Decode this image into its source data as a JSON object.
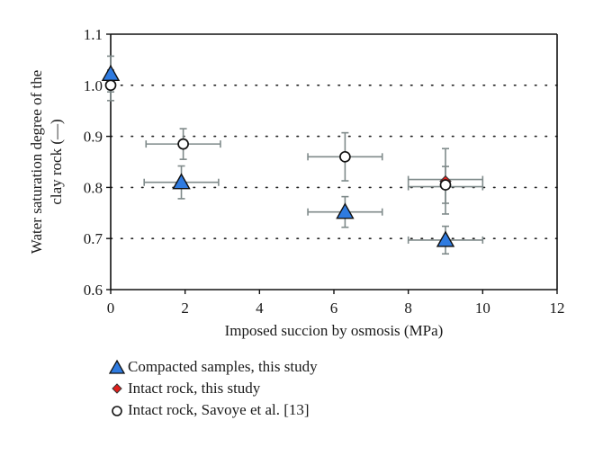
{
  "chart_data": {
    "type": "scatter",
    "title": "",
    "xlabel": "Imposed succion by osmosis (MPa)",
    "ylabel_lines": [
      "Water saturation degree of the",
      "clay rock (—)"
    ],
    "xlim": [
      0,
      12
    ],
    "ylim": [
      0.6,
      1.1
    ],
    "x_ticks": [
      0,
      2,
      4,
      6,
      8,
      10,
      12
    ],
    "y_ticks": [
      0.6,
      0.7,
      0.8,
      0.9,
      1.0,
      1.1
    ],
    "x_tick_labels": [
      "0",
      "2",
      "4",
      "6",
      "8",
      "10",
      "12"
    ],
    "y_tick_labels": [
      "0.6",
      "0.7",
      "0.8",
      "0.9",
      "1.0",
      "1.1"
    ],
    "grid": {
      "horizontal_dotted_at": [
        0.7,
        0.8,
        0.9,
        1.0
      ]
    },
    "legend_placement": "below",
    "series": [
      {
        "name": "Compacted samples, this study",
        "marker": "triangle",
        "color": "#2f7be0",
        "points": [
          {
            "x": 0.0,
            "y": 1.022,
            "xerr": 0,
            "yerr": 0.035
          },
          {
            "x": 1.9,
            "y": 0.81,
            "xerr": 1.0,
            "yerr": 0.032
          },
          {
            "x": 6.3,
            "y": 0.752,
            "xerr": 1.0,
            "yerr": 0.03
          },
          {
            "x": 9.0,
            "y": 0.697,
            "xerr": 1.0,
            "yerr": 0.027
          }
        ]
      },
      {
        "name": "Intact rock, this study",
        "marker": "diamond",
        "color": "#e0201c",
        "points": [
          {
            "x": 9.0,
            "y": 0.812,
            "xerr": 1.0,
            "yerr": 0.064
          }
        ]
      },
      {
        "name": "Intact rock, Savoye et al. [13]",
        "marker": "circle",
        "color": "#ffffff",
        "points": [
          {
            "x": 0.0,
            "y": 1.0,
            "xerr": 0,
            "yerr": 0.03
          },
          {
            "x": 1.95,
            "y": 0.885,
            "xerr": 1.0,
            "yerr": 0.03
          },
          {
            "x": 6.3,
            "y": 0.86,
            "xerr": 1.0,
            "yerr": 0.047
          },
          {
            "x": 9.0,
            "y": 0.805,
            "xerr": 1.0,
            "yerr": 0.036
          }
        ]
      }
    ],
    "errorbar_color": "#7f8a8a"
  },
  "legend": {
    "items": [
      {
        "label": "Compacted samples, this study"
      },
      {
        "label": "Intact rock, this study"
      },
      {
        "label": "Intact rock, Savoye et al. [13]"
      }
    ]
  }
}
